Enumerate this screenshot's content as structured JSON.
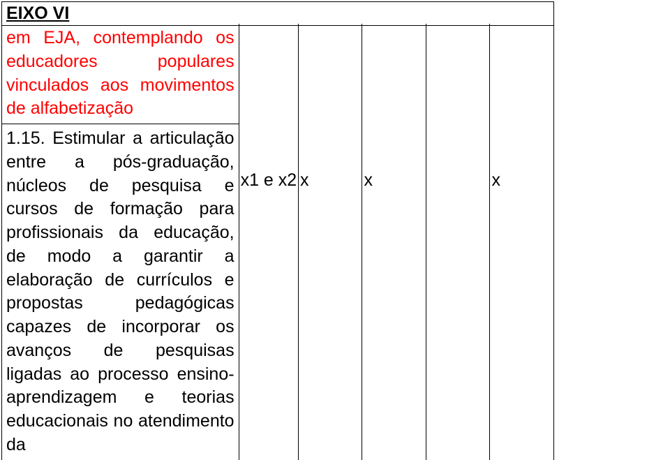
{
  "header": {
    "eixo_title": "EIXO VI"
  },
  "rows": [
    {
      "text_color": "#ff0000",
      "paragraph": "em EJA, contemplando os educadores populares vinculados aos movimentos de alfabetização",
      "cols": [
        "",
        "",
        "",
        "",
        ""
      ]
    },
    {
      "text_color": "#000000",
      "paragraph": "1.15. Estimular a articulação entre a pós-graduação, núcleos de pesquisa e cursos de formação para profissionais da educação, de modo a garantir a elaboração de currículos e propostas pedagógicas capazes de incorporar os avanços de pesquisas ligadas ao processo ensino-aprendizagem e teorias educacionais no atendimento da",
      "cols": [
        "x1 e x2",
        "x",
        "x",
        "",
        "x"
      ]
    }
  ],
  "style": {
    "font_size": 25,
    "border_color": "#000000",
    "red": "#ff0000",
    "black": "#000000",
    "background": "#ffffff"
  }
}
